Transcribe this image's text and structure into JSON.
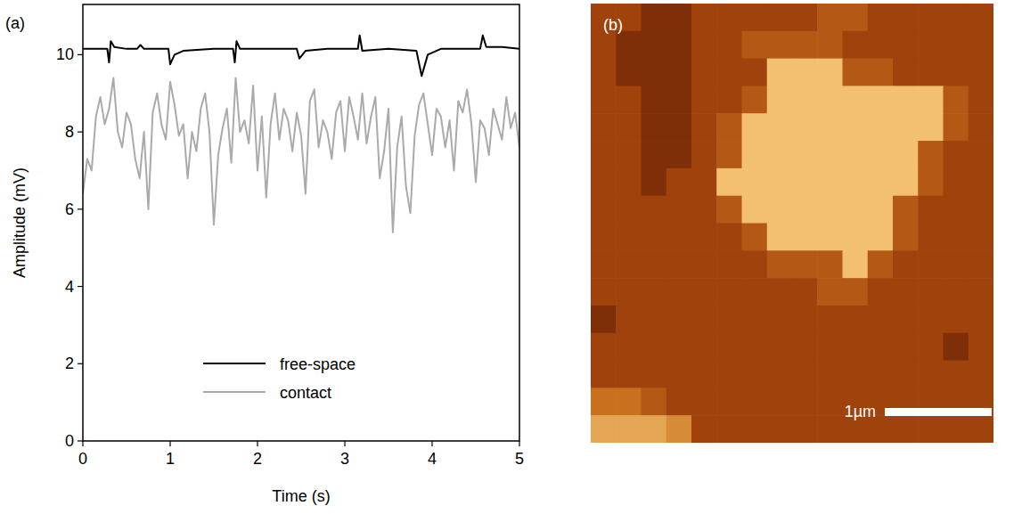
{
  "chart_data": [
    {
      "type": "line",
      "label": "(a)",
      "x_label": "Time (s)",
      "y_label": "Amplitude (mV)",
      "xlim": [
        0,
        5
      ],
      "xticks": [
        0,
        1,
        2,
        3,
        4,
        5
      ],
      "ylim": [
        0,
        11.3
      ],
      "yticks": [
        0,
        2,
        4,
        6,
        8,
        10
      ],
      "legend": "lower center",
      "series": [
        {
          "name": "free-space",
          "color": "#000000",
          "x": [
            0,
            0.28,
            0.3,
            0.32,
            0.36,
            0.5,
            0.62,
            0.66,
            0.7,
            0.98,
            1.0,
            1.05,
            1.15,
            1.5,
            1.72,
            1.74,
            1.76,
            1.8,
            2.45,
            2.48,
            2.55,
            2.8,
            3.15,
            3.17,
            3.2,
            3.5,
            3.82,
            3.88,
            3.95,
            4.1,
            4.55,
            4.58,
            4.62,
            4.8,
            5.0
          ],
          "values": [
            10.15,
            10.15,
            9.8,
            10.35,
            10.2,
            10.15,
            10.15,
            10.25,
            10.15,
            10.15,
            9.75,
            10.0,
            10.1,
            10.15,
            10.15,
            9.8,
            10.35,
            10.15,
            10.15,
            9.9,
            10.1,
            10.15,
            10.15,
            10.5,
            10.1,
            10.15,
            10.1,
            9.45,
            10.0,
            10.15,
            10.15,
            10.5,
            10.2,
            10.2,
            10.15
          ]
        },
        {
          "name": "contact",
          "color": "#aaaaaa",
          "x": [
            0,
            0.05,
            0.1,
            0.15,
            0.2,
            0.25,
            0.3,
            0.35,
            0.4,
            0.45,
            0.5,
            0.55,
            0.6,
            0.65,
            0.7,
            0.75,
            0.8,
            0.85,
            0.9,
            0.95,
            1.0,
            1.05,
            1.1,
            1.15,
            1.2,
            1.25,
            1.3,
            1.35,
            1.4,
            1.45,
            1.5,
            1.55,
            1.6,
            1.65,
            1.7,
            1.75,
            1.8,
            1.85,
            1.9,
            1.95,
            2.0,
            2.05,
            2.1,
            2.15,
            2.2,
            2.25,
            2.3,
            2.35,
            2.4,
            2.45,
            2.5,
            2.55,
            2.6,
            2.65,
            2.7,
            2.75,
            2.8,
            2.85,
            2.9,
            2.95,
            3.0,
            3.05,
            3.1,
            3.15,
            3.2,
            3.25,
            3.3,
            3.35,
            3.4,
            3.45,
            3.5,
            3.55,
            3.6,
            3.65,
            3.7,
            3.75,
            3.8,
            3.85,
            3.9,
            3.95,
            4.0,
            4.05,
            4.1,
            4.15,
            4.2,
            4.25,
            4.3,
            4.35,
            4.4,
            4.45,
            4.5,
            4.55,
            4.6,
            4.65,
            4.7,
            4.75,
            4.8,
            4.85,
            4.9,
            4.95,
            5.0
          ],
          "values": [
            6.4,
            7.3,
            7.0,
            8.4,
            8.9,
            8.2,
            8.6,
            9.4,
            8.0,
            7.6,
            8.5,
            8.2,
            7.3,
            6.8,
            8.0,
            6.0,
            8.5,
            9.0,
            8.2,
            7.8,
            9.3,
            8.7,
            7.9,
            8.2,
            6.8,
            8.0,
            7.5,
            8.6,
            9.0,
            8.0,
            5.6,
            7.4,
            8.1,
            8.6,
            7.2,
            9.4,
            8.0,
            8.3,
            7.7,
            9.2,
            7.0,
            8.4,
            6.3,
            8.2,
            9.0,
            7.8,
            8.6,
            8.3,
            7.5,
            8.5,
            7.9,
            6.4,
            8.8,
            9.1,
            7.6,
            8.3,
            8.0,
            7.3,
            8.5,
            8.8,
            7.5,
            8.9,
            8.4,
            7.8,
            9.0,
            7.7,
            8.4,
            8.9,
            6.8,
            7.5,
            8.6,
            5.4,
            7.6,
            8.4,
            6.6,
            5.9,
            7.9,
            8.7,
            9.0,
            8.2,
            7.4,
            8.6,
            8.4,
            7.6,
            8.3,
            7.0,
            8.8,
            8.5,
            9.1,
            8.2,
            6.7,
            8.3,
            8.1,
            7.4,
            8.6,
            8.2,
            7.8,
            8.9,
            8.1,
            8.5,
            7.6
          ]
        }
      ]
    },
    {
      "type": "heatmap",
      "label": "(b)",
      "tick_labels": false,
      "xlim": [
        0,
        3.77
      ],
      "ylim": [
        0,
        4.1
      ],
      "zlim": [
        0,
        10
      ],
      "scale_bar": {
        "value": 1,
        "label": "1µm"
      },
      "cells": [
        [
          3,
          3,
          2,
          2,
          3,
          3,
          3,
          3,
          3,
          4,
          4,
          3,
          3,
          3,
          3,
          3
        ],
        [
          3,
          2,
          2,
          2,
          3,
          3,
          4,
          4,
          4,
          4,
          3,
          3,
          3,
          3,
          3,
          3
        ],
        [
          3,
          2,
          2,
          2,
          3,
          3,
          3,
          8,
          8,
          8,
          4,
          4,
          3,
          3,
          3,
          3
        ],
        [
          3,
          3,
          2,
          2,
          3,
          3,
          4,
          8,
          8,
          8,
          8,
          8,
          8,
          8,
          4,
          3
        ],
        [
          3,
          3,
          2,
          2,
          3,
          4,
          8,
          8,
          8,
          8,
          8,
          8,
          8,
          8,
          4,
          3
        ],
        [
          3,
          3,
          2,
          2,
          3,
          4,
          8,
          8,
          8,
          8,
          8,
          8,
          8,
          4,
          3,
          3
        ],
        [
          3,
          3,
          2,
          3,
          3,
          8,
          8,
          8,
          8,
          8,
          8,
          8,
          8,
          4,
          3,
          3
        ],
        [
          3,
          3,
          3,
          3,
          3,
          4,
          8,
          8,
          8,
          8,
          8,
          8,
          4,
          3,
          3,
          3
        ],
        [
          3,
          3,
          3,
          3,
          3,
          3,
          4,
          8,
          8,
          8,
          8,
          8,
          4,
          3,
          3,
          3
        ],
        [
          3,
          3,
          3,
          3,
          3,
          3,
          3,
          4,
          4,
          4,
          8,
          4,
          3,
          3,
          3,
          3
        ],
        [
          3,
          3,
          3,
          3,
          3,
          3,
          3,
          3,
          3,
          4,
          4,
          3,
          3,
          3,
          3,
          3
        ],
        [
          2,
          3,
          3,
          3,
          3,
          3,
          3,
          3,
          3,
          3,
          3,
          3,
          3,
          3,
          3,
          3
        ],
        [
          3,
          3,
          3,
          3,
          3,
          3,
          3,
          3,
          3,
          3,
          3,
          3,
          3,
          3,
          2,
          3
        ],
        [
          3,
          3,
          3,
          3,
          3,
          3,
          3,
          3,
          3,
          3,
          3,
          3,
          3,
          3,
          3,
          3
        ],
        [
          5,
          5,
          4,
          3,
          3,
          3,
          3,
          3,
          3,
          3,
          3,
          3,
          3,
          3,
          3,
          3
        ],
        [
          7,
          7,
          7,
          6,
          3,
          3,
          3,
          3,
          3,
          3,
          3,
          3,
          3,
          3,
          3,
          3
        ]
      ]
    }
  ]
}
